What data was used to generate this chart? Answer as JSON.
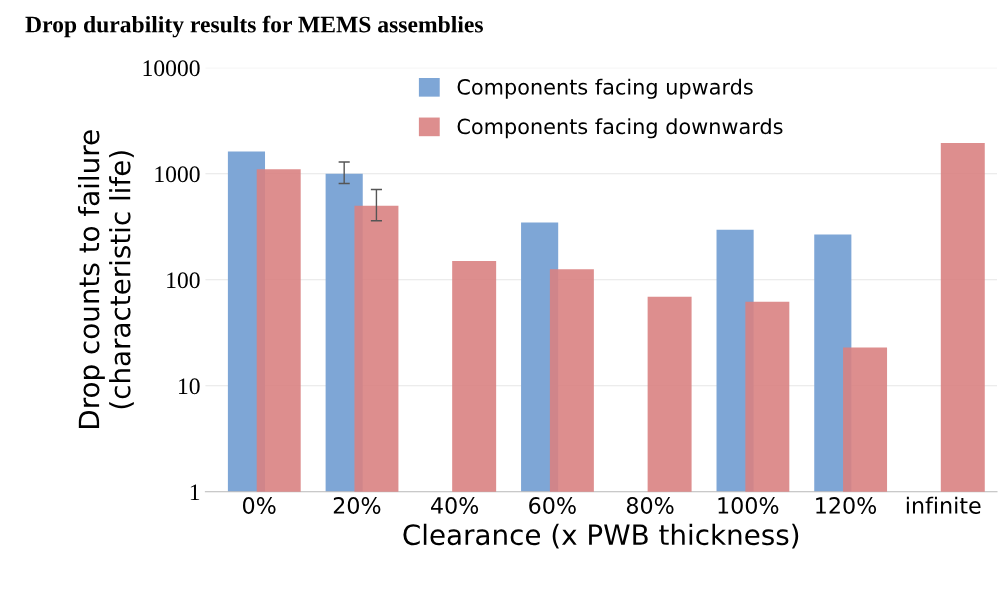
{
  "chart_data": {
    "type": "bar",
    "title": "Drop durability results for MEMS assemblies",
    "xlabel": "Clearance (x PWB thickness)",
    "ylabel": "Drop counts to failure\n(characteristic life)",
    "categories": [
      "0%",
      "20%",
      "40%",
      "60%",
      "80%",
      "100%",
      "120%",
      "infinite"
    ],
    "series": [
      {
        "name": "Components facing upwards",
        "color": "#7ea6d6",
        "values": [
          1620,
          1000,
          null,
          346,
          null,
          297,
          267,
          null
        ],
        "errors": [
          null,
          [
            810,
            1290
          ],
          null,
          null,
          null,
          null,
          null,
          null
        ]
      },
      {
        "name": "Components facing downwards",
        "color": "#d98282",
        "values": [
          1100,
          500,
          150,
          126,
          69,
          62,
          23,
          1950
        ],
        "errors": [
          null,
          [
            360,
            710
          ],
          null,
          null,
          null,
          null,
          null,
          null
        ]
      }
    ],
    "log": true,
    "ylim": [
      1,
      10000
    ],
    "yticks": [
      1,
      10,
      100,
      1000,
      10000
    ],
    "grid": "y",
    "legend": "top"
  }
}
